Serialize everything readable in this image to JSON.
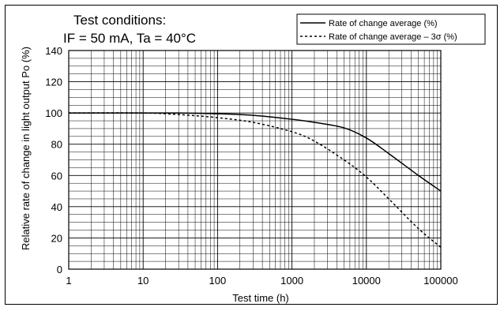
{
  "chart_data": {
    "type": "line",
    "title_lines": [
      "Test conditions:",
      "IF = 50 mA, Ta = 40°C"
    ],
    "xlabel": "Test time (h)",
    "ylabel": "Relative rate of change in light output Po (%)",
    "x_scale": "log",
    "xlim": [
      1,
      100000
    ],
    "ylim": [
      0,
      140
    ],
    "x_ticks": [
      1,
      10,
      100,
      1000,
      10000,
      100000
    ],
    "x_tick_labels": [
      "1",
      "10",
      "100",
      "1000",
      "10000",
      "100000"
    ],
    "y_ticks": [
      0,
      20,
      40,
      60,
      80,
      100,
      120,
      140
    ],
    "y_tick_labels": [
      "0",
      "20",
      "40",
      "60",
      "80",
      "100",
      "120",
      "140"
    ],
    "grid": true,
    "legend_position": "top-right",
    "series": [
      {
        "name": "Rate of change average (%)",
        "style": "solid",
        "x": [
          1,
          10,
          30,
          100,
          300,
          1000,
          2000,
          5000,
          10000,
          20000,
          50000,
          100000
        ],
        "y": [
          100,
          100,
          100,
          99.5,
          98.5,
          96,
          94,
          90.5,
          84,
          74,
          60,
          50
        ]
      },
      {
        "name": "Rate of change average – 3σ (%)",
        "style": "dashed",
        "x": [
          1,
          10,
          30,
          100,
          300,
          1000,
          2000,
          5000,
          10000,
          20000,
          50000,
          100000
        ],
        "y": [
          100,
          100,
          99,
          97,
          94,
          88,
          82,
          70,
          59,
          45,
          26,
          14
        ]
      }
    ]
  }
}
